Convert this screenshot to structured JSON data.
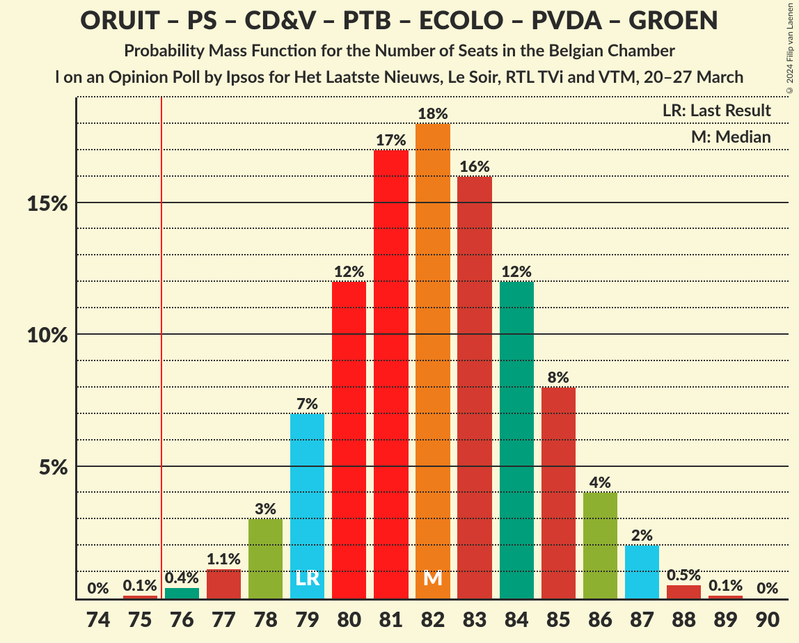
{
  "title": "ORUIT – PS – CD&V – PTB – ECOLO – PVDA – GROEN",
  "subtitle1": "Probability Mass Function for the Number of Seats in the Belgian Chamber",
  "subtitle2": "l on an Opinion Poll by Ipsos for Het Laatste Nieuws, Le Soir, RTL TVi and VTM, 20–27 March",
  "copyright": "© 2024 Filip van Laenen",
  "legend": {
    "lr": "LR: Last Result",
    "m": "M: Median"
  },
  "chart": {
    "type": "bar",
    "background_color": "#fbf8d9",
    "axis_color": "#2a2a2a",
    "grid_solid_color": "#2a2a2a",
    "grid_dotted_color": "#2a2a2a",
    "lr_line_color": "#ff1a1a",
    "lr_line_x": 75.5,
    "ymax": 19,
    "major_ticks": [
      5,
      10,
      15
    ],
    "minor_step": 1,
    "categories": [
      74,
      75,
      76,
      77,
      78,
      79,
      80,
      81,
      82,
      83,
      84,
      85,
      86,
      87,
      88,
      89,
      90
    ],
    "values": [
      0,
      0.1,
      0.4,
      1.1,
      3,
      7,
      12,
      17,
      18,
      16,
      12,
      8,
      4,
      2,
      0.5,
      0.1,
      0
    ],
    "value_labels": [
      "0%",
      "0.1%",
      "0.4%",
      "1.1%",
      "3%",
      "7%",
      "12%",
      "17%",
      "18%",
      "16%",
      "12%",
      "8%",
      "4%",
      "2%",
      "0.5%",
      "0.1%",
      "0%"
    ],
    "bar_colors": [
      "#d43a2f",
      "#d43a2f",
      "#009e7a",
      "#d43a2f",
      "#8eb030",
      "#1fc8e8",
      "#ff1a1a",
      "#ff1a1a",
      "#ef7c1a",
      "#d43a2f",
      "#009e7a",
      "#d43a2f",
      "#8eb030",
      "#1fc8e8",
      "#d43a2f",
      "#d43a2f",
      "#d43a2f"
    ],
    "bar_inner_labels": {
      "79": "LR",
      "82": "M"
    },
    "bar_width_ratio": 0.82,
    "label_fontsize": 22,
    "axis_fontsize": 30,
    "title_fontsize": 36,
    "subtitle_fontsize": 24
  }
}
